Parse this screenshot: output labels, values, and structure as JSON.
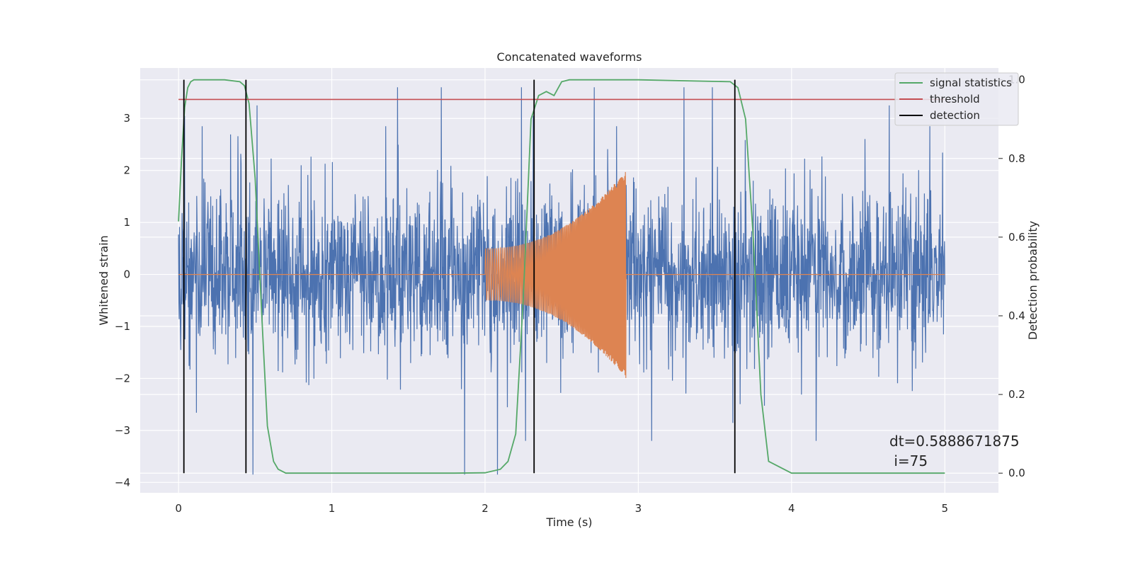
{
  "chart_data": {
    "type": "line",
    "title": "Concatenated waveforms",
    "xlabel": "Time (s)",
    "ylabel": "Whitened strain",
    "ylabel_right": "Detection probability",
    "xlim": [
      -0.25,
      5.35
    ],
    "ylim": [
      -4.2,
      3.97
    ],
    "ylim_right": [
      -0.05,
      1.03
    ],
    "x_ticks": [
      0,
      1,
      2,
      3,
      4,
      5
    ],
    "x_tick_labels": [
      "0",
      "1",
      "2",
      "3",
      "4",
      "5"
    ],
    "y_ticks": [
      3,
      2,
      1,
      0,
      -1,
      -2,
      -3,
      -4
    ],
    "y_tick_labels": [
      "3",
      "2",
      "1",
      "0",
      "−1",
      "−2",
      "−3",
      "−4"
    ],
    "y_right_ticks": [
      1.0,
      0.8,
      0.6,
      0.4,
      0.2,
      0.0
    ],
    "y_right_tick_labels": [
      "1.0",
      "0.8",
      "0.6",
      "0.4",
      "0.2",
      "0.0"
    ],
    "grid": true,
    "legend_position": "top-right",
    "legend": [
      "signal statistics",
      "threshold",
      "detection"
    ],
    "colors": {
      "noise": "#4c72b0",
      "signal": "#dd8452",
      "statistics": "#55a868",
      "threshold": "#c44e52",
      "detection": "#000000",
      "plot_bg": "#eaeaf2",
      "grid": "#ffffff"
    },
    "noise_strain": {
      "x_range": [
        0,
        5
      ],
      "typical_amplitude": 1.5,
      "peak_values": [
        3.6,
        3.25,
        3.05,
        2.85,
        -3.2,
        -3.85,
        3.6
      ]
    },
    "injected_signal": {
      "x_start": 2.0,
      "x_end": 2.92,
      "start_amplitude": 0.5,
      "end_amplitude": 2.0
    },
    "signal_statistics": {
      "x": [
        0,
        0.02,
        0.04,
        0.06,
        0.08,
        0.1,
        0.15,
        0.3,
        0.4,
        0.43,
        0.46,
        0.5,
        0.55,
        0.58,
        0.62,
        0.65,
        0.7,
        1.0,
        1.8,
        2.0,
        2.1,
        2.15,
        2.2,
        2.25,
        2.3,
        2.35,
        2.4,
        2.45,
        2.5,
        2.55,
        2.6,
        3.0,
        3.6,
        3.65,
        3.7,
        3.75,
        3.8,
        3.85,
        4.0,
        5.0
      ],
      "y": [
        0.64,
        0.8,
        0.93,
        0.98,
        0.995,
        1.0,
        1.0,
        1.0,
        0.995,
        0.985,
        0.94,
        0.75,
        0.35,
        0.12,
        0.03,
        0.01,
        0.0,
        0.0,
        0.0,
        0.001,
        0.01,
        0.03,
        0.1,
        0.45,
        0.9,
        0.96,
        0.97,
        0.96,
        0.995,
        1.0,
        1.0,
        1.0,
        0.995,
        0.98,
        0.9,
        0.6,
        0.2,
        0.03,
        0.0,
        0.0
      ]
    },
    "threshold_value": 0.95,
    "detection_times": [
      0.035,
      0.44,
      2.32,
      3.63
    ],
    "annotation": [
      "dt=0.5888671875",
      " i=75"
    ]
  }
}
